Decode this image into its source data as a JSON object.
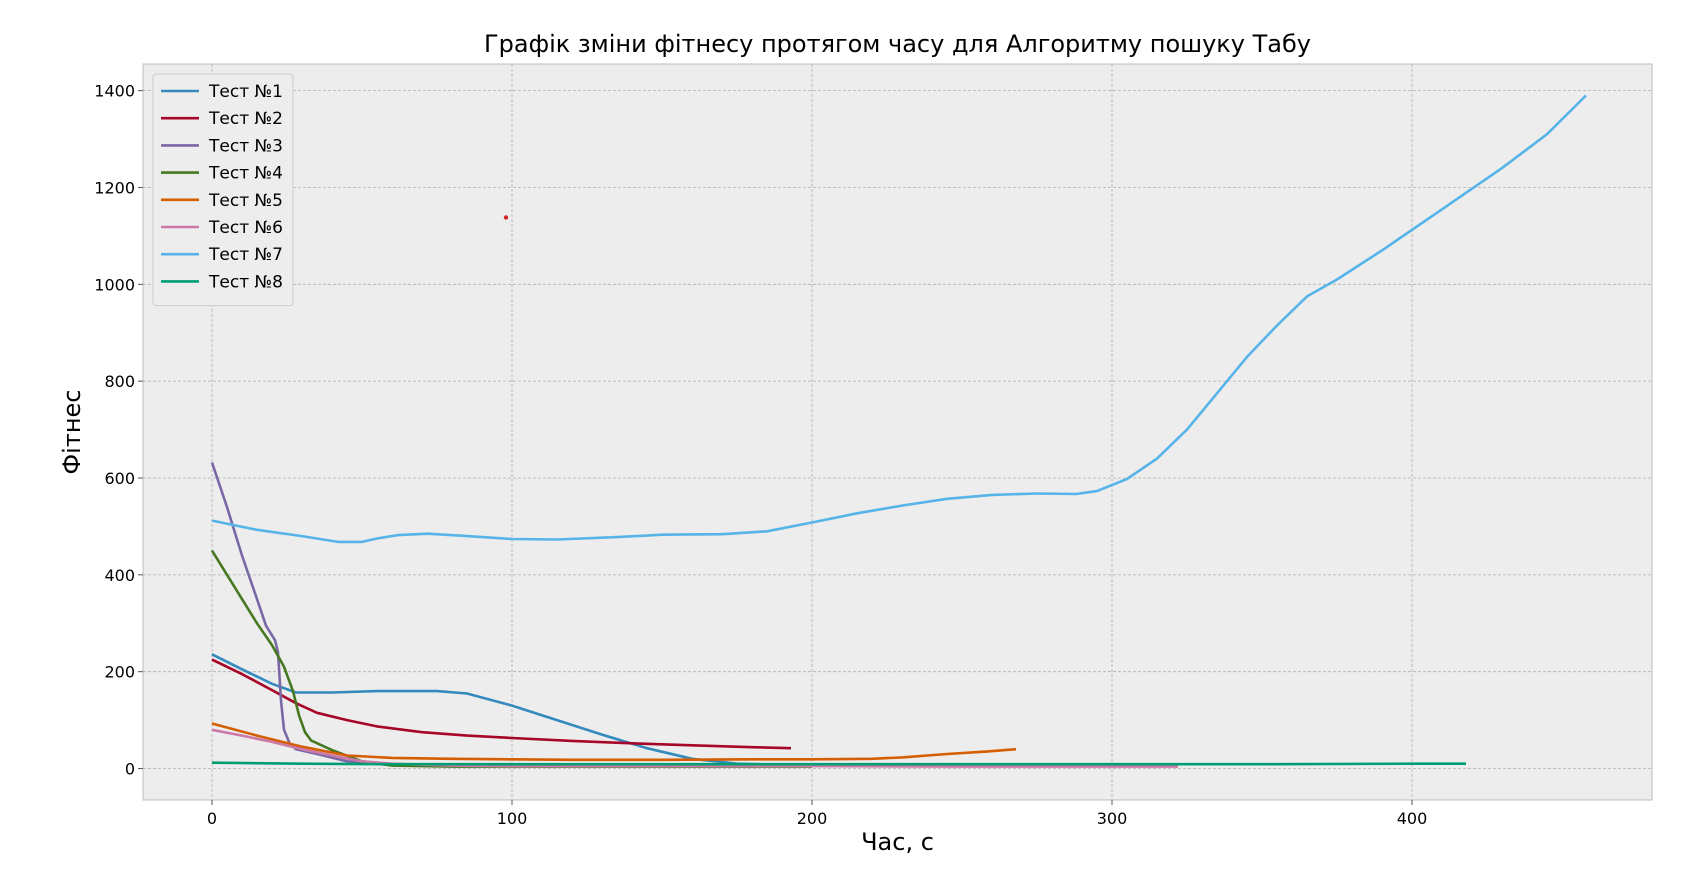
{
  "chart_data": {
    "type": "line",
    "title": "Графік зміни фітнесу протягом часу для Алгоритму пошуку Табу",
    "xlabel": "Час, с",
    "ylabel": "Фітнес",
    "xlim": [
      -23,
      480
    ],
    "ylim": [
      -65,
      1455
    ],
    "xticks": [
      0,
      100,
      200,
      300,
      400
    ],
    "yticks": [
      0,
      200,
      400,
      600,
      800,
      1000,
      1200,
      1400
    ],
    "grid": true,
    "legend_position": "top-left",
    "background": "#ededed",
    "series": [
      {
        "name": "Тест №1",
        "color": "#348abd",
        "points": [
          [
            0,
            236
          ],
          [
            10,
            205
          ],
          [
            20,
            175
          ],
          [
            28,
            157
          ],
          [
            40,
            157
          ],
          [
            55,
            160
          ],
          [
            75,
            160
          ],
          [
            85,
            155
          ],
          [
            100,
            130
          ],
          [
            115,
            100
          ],
          [
            130,
            70
          ],
          [
            145,
            42
          ],
          [
            160,
            20
          ],
          [
            175,
            10
          ],
          [
            190,
            8
          ],
          [
            200,
            7
          ],
          [
            205,
            7
          ]
        ]
      },
      {
        "name": "Тест №2",
        "color": "#a60628",
        "points": [
          [
            0,
            225
          ],
          [
            10,
            195
          ],
          [
            20,
            162
          ],
          [
            28,
            135
          ],
          [
            35,
            115
          ],
          [
            45,
            100
          ],
          [
            55,
            87
          ],
          [
            70,
            75
          ],
          [
            85,
            68
          ],
          [
            100,
            63
          ],
          [
            120,
            57
          ],
          [
            140,
            52
          ],
          [
            160,
            48
          ],
          [
            180,
            44
          ],
          [
            193,
            42
          ]
        ]
      },
      {
        "name": "Тест №3",
        "color": "#7a68a6",
        "points": [
          [
            0,
            632
          ],
          [
            5,
            540
          ],
          [
            10,
            440
          ],
          [
            15,
            350
          ],
          [
            18,
            295
          ],
          [
            21,
            265
          ],
          [
            22,
            240
          ],
          [
            23,
            140
          ],
          [
            24,
            80
          ],
          [
            26,
            50
          ],
          [
            28,
            40
          ],
          [
            35,
            30
          ],
          [
            45,
            15
          ],
          [
            60,
            7
          ],
          [
            80,
            5
          ],
          [
            100,
            5
          ],
          [
            140,
            5
          ],
          [
            200,
            5
          ]
        ]
      },
      {
        "name": "Тест №4",
        "color": "#467821",
        "points": [
          [
            0,
            450
          ],
          [
            5,
            400
          ],
          [
            10,
            350
          ],
          [
            15,
            300
          ],
          [
            20,
            255
          ],
          [
            24,
            210
          ],
          [
            27,
            160
          ],
          [
            29,
            110
          ],
          [
            31,
            75
          ],
          [
            33,
            58
          ],
          [
            40,
            38
          ],
          [
            50,
            15
          ],
          [
            60,
            6
          ],
          [
            80,
            4
          ],
          [
            120,
            4
          ],
          [
            160,
            4
          ],
          [
            200,
            4
          ]
        ]
      },
      {
        "name": "Тест №5",
        "color": "#d55e00",
        "points": [
          [
            0,
            93
          ],
          [
            15,
            68
          ],
          [
            30,
            45
          ],
          [
            45,
            27
          ],
          [
            60,
            22
          ],
          [
            80,
            20
          ],
          [
            100,
            19
          ],
          [
            120,
            18
          ],
          [
            150,
            18
          ],
          [
            180,
            19
          ],
          [
            200,
            19
          ],
          [
            220,
            20
          ],
          [
            230,
            23
          ],
          [
            245,
            30
          ],
          [
            258,
            35
          ],
          [
            268,
            40
          ]
        ]
      },
      {
        "name": "Тест №6",
        "color": "#cc79a7",
        "points": [
          [
            0,
            80
          ],
          [
            10,
            68
          ],
          [
            20,
            55
          ],
          [
            30,
            40
          ],
          [
            40,
            27
          ],
          [
            50,
            15
          ],
          [
            60,
            10
          ],
          [
            80,
            6
          ],
          [
            100,
            5
          ],
          [
            150,
            5
          ],
          [
            200,
            5
          ],
          [
            250,
            4
          ],
          [
            300,
            4
          ],
          [
            322,
            4
          ]
        ]
      },
      {
        "name": "Тест №7",
        "color": "#56b4e9",
        "points": [
          [
            0,
            512
          ],
          [
            15,
            493
          ],
          [
            30,
            480
          ],
          [
            42,
            468
          ],
          [
            50,
            468
          ],
          [
            55,
            475
          ],
          [
            62,
            482
          ],
          [
            72,
            485
          ],
          [
            85,
            480
          ],
          [
            100,
            474
          ],
          [
            115,
            473
          ],
          [
            135,
            478
          ],
          [
            150,
            483
          ],
          [
            170,
            484
          ],
          [
            185,
            490
          ],
          [
            200,
            508
          ],
          [
            215,
            527
          ],
          [
            230,
            543
          ],
          [
            245,
            557
          ],
          [
            260,
            565
          ],
          [
            275,
            568
          ],
          [
            288,
            567
          ],
          [
            295,
            573
          ],
          [
            305,
            598
          ],
          [
            315,
            640
          ],
          [
            325,
            700
          ],
          [
            335,
            775
          ],
          [
            345,
            850
          ],
          [
            355,
            915
          ],
          [
            365,
            975
          ],
          [
            375,
            1010
          ],
          [
            390,
            1070
          ],
          [
            410,
            1155
          ],
          [
            430,
            1240
          ],
          [
            445,
            1310
          ],
          [
            458,
            1390
          ]
        ]
      },
      {
        "name": "Тест №8",
        "color": "#009e73",
        "points": [
          [
            0,
            12
          ],
          [
            30,
            10
          ],
          [
            60,
            9
          ],
          [
            100,
            9
          ],
          [
            150,
            9
          ],
          [
            200,
            9
          ],
          [
            250,
            9
          ],
          [
            300,
            9
          ],
          [
            350,
            9
          ],
          [
            400,
            10
          ],
          [
            418,
            10
          ]
        ]
      }
    ],
    "annotation_point": {
      "x": 98,
      "y": 1138,
      "color": "#d62728"
    }
  }
}
